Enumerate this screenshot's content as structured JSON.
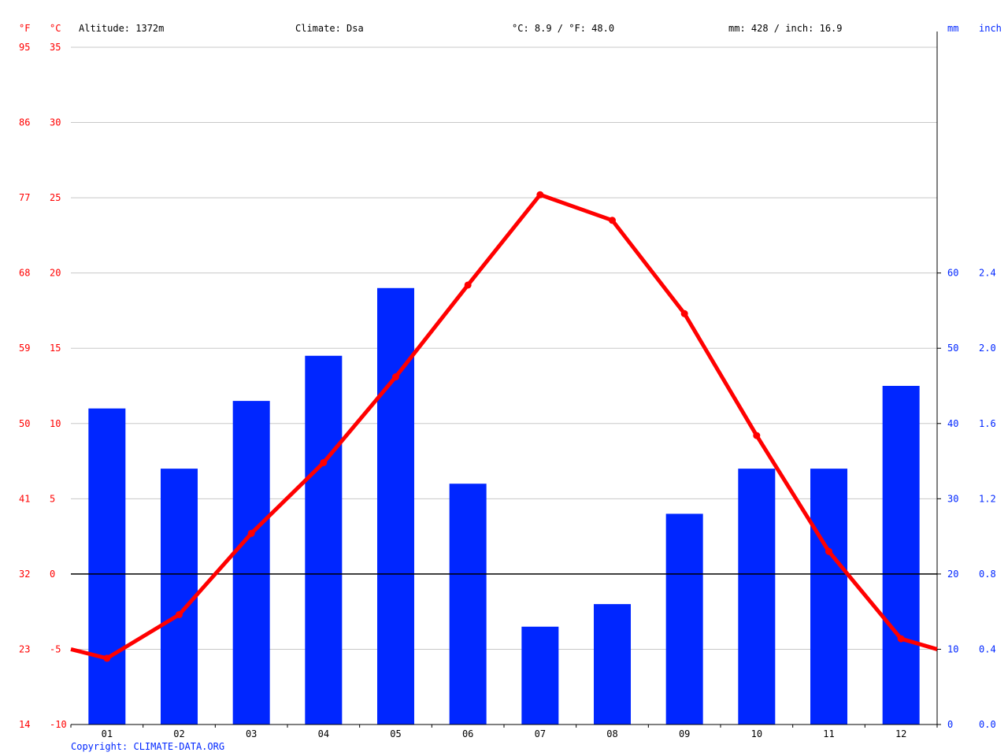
{
  "header": {
    "unit_f": "°F",
    "unit_c": "°C",
    "altitude": "Altitude: 1372m",
    "climate": "Climate: Dsa",
    "temp_avg": "°C: 8.9 / °F: 48.0",
    "precip_total": "mm: 428 / inch: 16.9",
    "unit_mm": "mm",
    "unit_inch": "inch"
  },
  "copyright": "Copyright: CLIMATE-DATA.ORG",
  "colors": {
    "temperature": "#ff0000",
    "precipitation": "#0026ff",
    "grid": "#c8c8c8",
    "zero_line": "#000000"
  },
  "chart_data": {
    "type": "bar",
    "categories": [
      "01",
      "02",
      "03",
      "04",
      "05",
      "06",
      "07",
      "08",
      "09",
      "10",
      "11",
      "12"
    ],
    "series": [
      {
        "type": "bar",
        "axis": "right",
        "values": [
          42,
          34,
          43,
          49,
          58,
          32,
          13,
          16,
          28,
          34,
          34,
          45
        ]
      },
      {
        "type": "line",
        "axis": "left",
        "values": [
          -5.6,
          -2.7,
          2.7,
          7.4,
          13.1,
          19.2,
          25.2,
          23.5,
          17.3,
          9.2,
          1.5,
          -4.3
        ],
        "edge_values": [
          -5.0,
          -5.0
        ]
      }
    ],
    "y_left_c": {
      "range": [
        -10,
        35
      ],
      "ticks": [
        "-10",
        "-5",
        "0",
        "5",
        "10",
        "15",
        "20",
        "25",
        "30",
        "35"
      ]
    },
    "y_left_f": {
      "ticks": [
        "14",
        "23",
        "32",
        "41",
        "50",
        "59",
        "68",
        "77",
        "86",
        "95"
      ]
    },
    "y_right_mm": {
      "range": [
        0,
        60
      ],
      "ticks": [
        "0",
        "10",
        "20",
        "30",
        "40",
        "50",
        "60"
      ]
    },
    "y_right_inch": {
      "ticks": [
        "0.0",
        "0.4",
        "0.8",
        "1.2",
        "1.6",
        "2.0",
        "2.4"
      ]
    },
    "grid": true,
    "legend": "none"
  }
}
